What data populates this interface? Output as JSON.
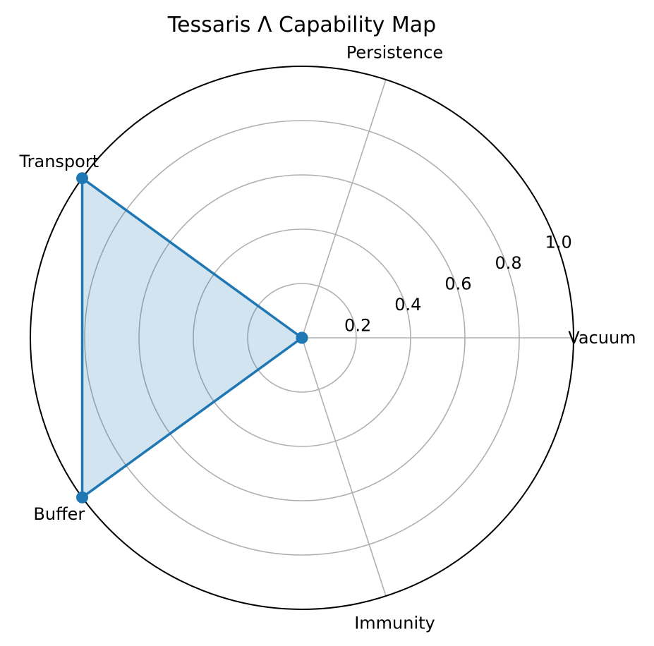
{
  "chart_data": {
    "type": "radar",
    "title": "Tessaris Λ Capability Map",
    "categories": [
      "Vacuum",
      "Persistence",
      "Transport",
      "Buffer",
      "Immunity"
    ],
    "series": [
      {
        "values": [
          0.0,
          0.0,
          1.0,
          1.0,
          0.0
        ]
      }
    ],
    "rlim": [
      0,
      1.0
    ],
    "r_ticks": [
      "0.2",
      "0.4",
      "0.6",
      "0.8",
      "1.0"
    ],
    "grid": true,
    "colors": {
      "series": "#1f77b4",
      "fill": "#1f77b4",
      "grid": "#b0b0b0",
      "frame": "#000000"
    }
  }
}
